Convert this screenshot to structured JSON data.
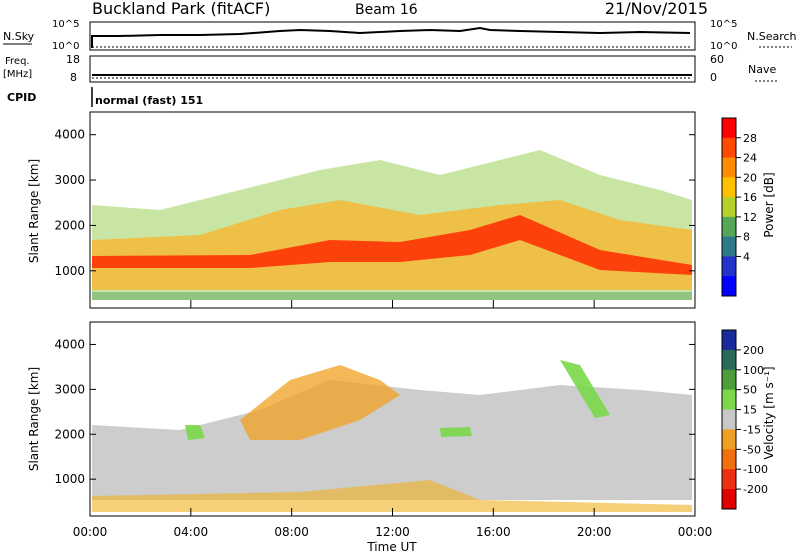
{
  "header": {
    "station": "Buckland Park (fitACF)",
    "beam": "Beam 16",
    "date": "21/Nov/2015"
  },
  "top_panels": {
    "nsky_label": "N.Sky",
    "nsearch_label": "N.Search",
    "noise_top_tick": "10^5",
    "noise_bottom_tick": "10^0",
    "freq_label_line1": "Freq.",
    "freq_label_line2": "[MHz]",
    "freq_ticks": [
      "18",
      "8"
    ],
    "nave_label": "Nave",
    "nave_ticks": [
      "60",
      "0"
    ],
    "cpid_label": "CPID",
    "cpid_value": "normal (fast) 151"
  },
  "chart_data": [
    {
      "type": "heatmap",
      "name": "power",
      "ylabel": "Slant Range [km]",
      "yticks": [
        "4000",
        "3000",
        "2000",
        "1000"
      ],
      "ylim": [
        180,
        4500
      ],
      "colorbar_label": "Power [dB]",
      "colorbar_ticks": [
        "28",
        "24",
        "20",
        "16",
        "12",
        "8",
        "4"
      ],
      "colorbar_colors": [
        "#ff0000",
        "#ff4a00",
        "#ff8c00",
        "#ffc000",
        "#b4d22a",
        "#56a658",
        "#2f7a8a",
        "#2233cc",
        "#0000ff"
      ]
    },
    {
      "type": "heatmap",
      "name": "velocity",
      "ylabel": "Slant Range [km]",
      "yticks": [
        "4000",
        "3000",
        "2000",
        "1000"
      ],
      "ylim": [
        180,
        4500
      ],
      "colorbar_label": "Velocity [m s⁻¹]",
      "colorbar_ticks": [
        "200",
        "100",
        "50",
        "15",
        "-15",
        "-50",
        "-100",
        "-200"
      ],
      "colorbar_colors": [
        "#1a2a9a",
        "#2a6a5a",
        "#4c9c3a",
        "#7ad84a",
        "#c8c8c8",
        "#f0a020",
        "#f07010",
        "#ee3010",
        "#e00000"
      ]
    }
  ],
  "x_axis": {
    "ticks": [
      "00:00",
      "04:00",
      "08:00",
      "12:00",
      "16:00",
      "20:00",
      "00:00"
    ],
    "label": "Time UT"
  }
}
